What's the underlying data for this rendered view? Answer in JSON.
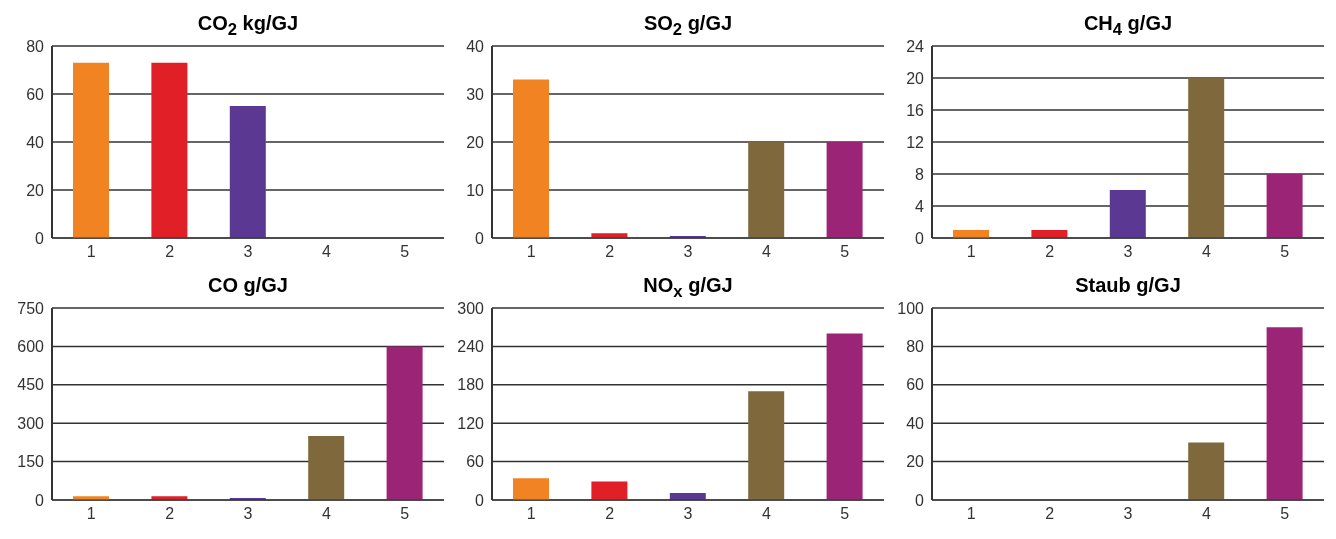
{
  "chart_data": [
    {
      "type": "bar",
      "title": "CO$_{2}$ kg/GJ",
      "categories": [
        "1",
        "2",
        "3",
        "4",
        "5"
      ],
      "values": [
        73,
        73,
        55,
        0,
        0
      ],
      "colors": [
        "#f28322",
        "#e01f27",
        "#5b3892",
        "#7f683b",
        "#9c2477"
      ],
      "ylim": [
        0,
        80
      ],
      "yticks": [
        0,
        20,
        40,
        60,
        80
      ],
      "grid": "y"
    },
    {
      "type": "bar",
      "title": "SO$_{2}$ g/GJ",
      "categories": [
        "1",
        "2",
        "3",
        "4",
        "5"
      ],
      "values": [
        33,
        1,
        0.4,
        20,
        20
      ],
      "colors": [
        "#f28322",
        "#e01f27",
        "#5b3892",
        "#7f683b",
        "#9c2477"
      ],
      "ylim": [
        0,
        40
      ],
      "yticks": [
        0,
        10,
        20,
        30,
        40
      ],
      "grid": "y"
    },
    {
      "type": "bar",
      "title": "CH$_{4}$ g/GJ",
      "categories": [
        "1",
        "2",
        "3",
        "4",
        "5"
      ],
      "values": [
        1,
        1,
        6,
        20,
        8
      ],
      "colors": [
        "#f28322",
        "#e01f27",
        "#5b3892",
        "#7f683b",
        "#9c2477"
      ],
      "ylim": [
        0,
        24
      ],
      "yticks": [
        0,
        4,
        8,
        12,
        16,
        20,
        24
      ],
      "grid": "y"
    },
    {
      "type": "bar",
      "title": "CO g/GJ",
      "categories": [
        "1",
        "2",
        "3",
        "4",
        "5"
      ],
      "values": [
        15,
        15,
        8,
        250,
        600
      ],
      "colors": [
        "#f28322",
        "#e01f27",
        "#5b3892",
        "#7f683b",
        "#9c2477"
      ],
      "ylim": [
        0,
        750
      ],
      "yticks": [
        0,
        150,
        300,
        450,
        600,
        750
      ],
      "grid": "y"
    },
    {
      "type": "bar",
      "title": "NO$_{x}$ g/GJ",
      "categories": [
        "1",
        "2",
        "3",
        "4",
        "5"
      ],
      "values": [
        34,
        29,
        11,
        170,
        260
      ],
      "colors": [
        "#f28322",
        "#e01f27",
        "#5b3892",
        "#7f683b",
        "#9c2477"
      ],
      "ylim": [
        0,
        300
      ],
      "yticks": [
        0,
        60,
        120,
        180,
        240,
        300
      ],
      "grid": "y"
    },
    {
      "type": "bar",
      "title": "Staub g/GJ",
      "categories": [
        "1",
        "2",
        "3",
        "4",
        "5"
      ],
      "values": [
        0,
        0,
        0,
        30,
        90
      ],
      "colors": [
        "#f28322",
        "#e01f27",
        "#5b3892",
        "#7f683b",
        "#9c2477"
      ],
      "ylim": [
        0,
        100
      ],
      "yticks": [
        0,
        20,
        40,
        60,
        80,
        100
      ],
      "grid": "y"
    }
  ]
}
